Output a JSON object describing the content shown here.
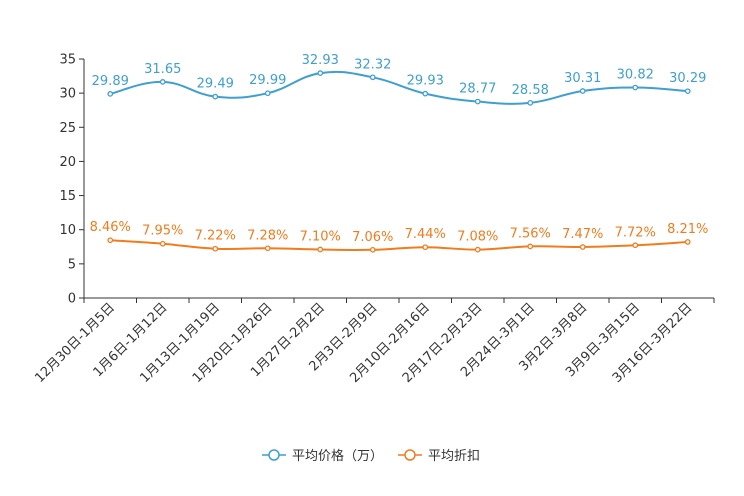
{
  "chart_data": {
    "type": "line",
    "title": "",
    "xlabel": "",
    "ylabel": "",
    "ylim": [
      0,
      35
    ],
    "yticks": [
      0,
      5,
      10,
      15,
      20,
      25,
      30,
      35
    ],
    "grid": false,
    "legend_position": "bottom-center",
    "categories": [
      "12月30日-1月5日",
      "1月6日-1月12日",
      "1月13日-1月19日",
      "1月20日-1月26日",
      "1月27日-2月2日",
      "2月3日-2月9日",
      "2月10日-2月16日",
      "2月17日-2月23日",
      "2月24日-3月1日",
      "3月2日-3月8日",
      "3月9日-3月15日",
      "3月16日-3月22日"
    ],
    "series": [
      {
        "name": "平均价格（万）",
        "color": "#3f9fcf",
        "values": [
          29.89,
          31.65,
          29.49,
          29.99,
          32.93,
          32.32,
          29.93,
          28.77,
          28.58,
          30.31,
          30.82,
          30.29
        ],
        "labels": [
          "29.89",
          "31.65",
          "29.49",
          "29.99",
          "32.93",
          "32.32",
          "29.93",
          "28.77",
          "28.58",
          "30.31",
          "30.82",
          "30.29"
        ]
      },
      {
        "name": "平均折扣",
        "color": "#f07c1e",
        "values": [
          8.46,
          7.95,
          7.22,
          7.28,
          7.1,
          7.06,
          7.44,
          7.08,
          7.56,
          7.47,
          7.72,
          8.21
        ],
        "labels": [
          "8.46%",
          "7.95%",
          "7.22%",
          "7.28%",
          "7.10%",
          "7.06%",
          "7.44%",
          "7.08%",
          "7.56%",
          "7.47%",
          "7.72%",
          "8.21%"
        ]
      }
    ]
  }
}
